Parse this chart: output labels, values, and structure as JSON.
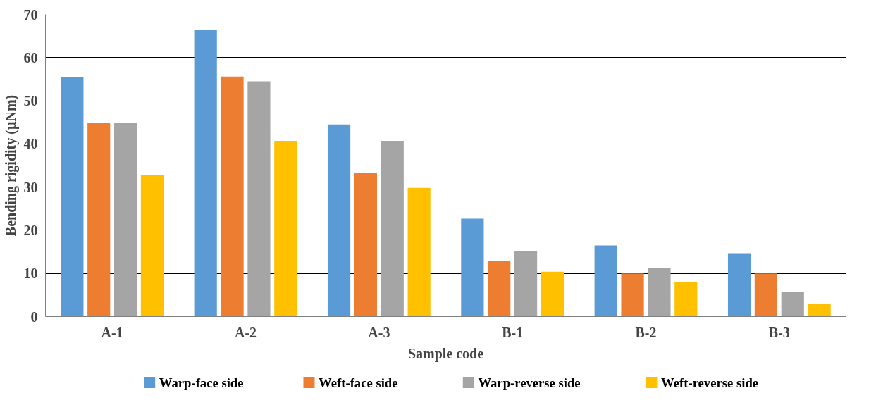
{
  "chart_data": {
    "type": "bar",
    "xlabel": "Sample code",
    "ylabel": "Bending rigidity (µNm)",
    "categories": [
      "A-1",
      "A-2",
      "A-3",
      "B-1",
      "B-2",
      "B-3"
    ],
    "series": [
      {
        "name": "Warp-face side",
        "color": "#5b9bd5",
        "values": [
          55.5,
          66.4,
          44.5,
          22.7,
          16.5,
          14.7
        ]
      },
      {
        "name": "Weft-face side",
        "color": "#ed7d31",
        "values": [
          44.9,
          55.6,
          33.3,
          12.9,
          10.0,
          10.0
        ]
      },
      {
        "name": "Warp-reverse side",
        "color": "#a5a5a5",
        "values": [
          44.9,
          54.5,
          40.7,
          15.1,
          11.3,
          5.8
        ]
      },
      {
        "name": "Weft-reverse side",
        "color": "#ffc000",
        "values": [
          32.7,
          40.7,
          29.8,
          10.4,
          8.0,
          2.9
        ]
      }
    ],
    "ylim": [
      0,
      70
    ],
    "yticks": [
      0,
      10,
      20,
      30,
      40,
      50,
      60,
      70
    ],
    "grid": "y",
    "legend": "bottom"
  }
}
